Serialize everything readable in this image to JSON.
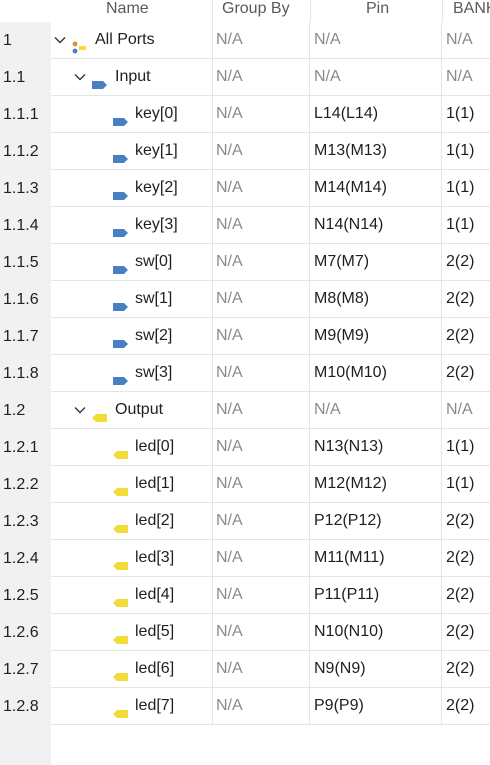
{
  "columns": {
    "name": "Name",
    "group_by": "Group By",
    "pin": "Pin",
    "bank": "BANK"
  },
  "colors": {
    "input_port": "#4a7fc1",
    "output_port": "#f2dc3a",
    "all_ports": "#e08a2a"
  },
  "rows": [
    {
      "num": "1",
      "level": 0,
      "expandable": true,
      "icon": "all-ports-icon",
      "name": "All Ports",
      "group_by": "N/A",
      "pin": "N/A",
      "bank": "N/A"
    },
    {
      "num": "1.1",
      "level": 1,
      "expandable": true,
      "icon": "input-port-icon",
      "name": "Input",
      "group_by": "N/A",
      "pin": "N/A",
      "bank": "N/A"
    },
    {
      "num": "1.1.1",
      "level": 2,
      "expandable": false,
      "icon": "input-port-icon",
      "name": "key[0]",
      "group_by": "N/A",
      "pin": "L14(L14)",
      "bank": "1(1)"
    },
    {
      "num": "1.1.2",
      "level": 2,
      "expandable": false,
      "icon": "input-port-icon",
      "name": "key[1]",
      "group_by": "N/A",
      "pin": "M13(M13)",
      "bank": "1(1)"
    },
    {
      "num": "1.1.3",
      "level": 2,
      "expandable": false,
      "icon": "input-port-icon",
      "name": "key[2]",
      "group_by": "N/A",
      "pin": "M14(M14)",
      "bank": "1(1)"
    },
    {
      "num": "1.1.4",
      "level": 2,
      "expandable": false,
      "icon": "input-port-icon",
      "name": "key[3]",
      "group_by": "N/A",
      "pin": "N14(N14)",
      "bank": "1(1)"
    },
    {
      "num": "1.1.5",
      "level": 2,
      "expandable": false,
      "icon": "input-port-icon",
      "name": "sw[0]",
      "group_by": "N/A",
      "pin": "M7(M7)",
      "bank": "2(2)"
    },
    {
      "num": "1.1.6",
      "level": 2,
      "expandable": false,
      "icon": "input-port-icon",
      "name": "sw[1]",
      "group_by": "N/A",
      "pin": "M8(M8)",
      "bank": "2(2)"
    },
    {
      "num": "1.1.7",
      "level": 2,
      "expandable": false,
      "icon": "input-port-icon",
      "name": "sw[2]",
      "group_by": "N/A",
      "pin": "M9(M9)",
      "bank": "2(2)"
    },
    {
      "num": "1.1.8",
      "level": 2,
      "expandable": false,
      "icon": "input-port-icon",
      "name": "sw[3]",
      "group_by": "N/A",
      "pin": "M10(M10)",
      "bank": "2(2)"
    },
    {
      "num": "1.2",
      "level": 1,
      "expandable": true,
      "icon": "output-port-icon",
      "name": "Output",
      "group_by": "N/A",
      "pin": "N/A",
      "bank": "N/A"
    },
    {
      "num": "1.2.1",
      "level": 2,
      "expandable": false,
      "icon": "output-port-icon",
      "name": "led[0]",
      "group_by": "N/A",
      "pin": "N13(N13)",
      "bank": "1(1)"
    },
    {
      "num": "1.2.2",
      "level": 2,
      "expandable": false,
      "icon": "output-port-icon",
      "name": "led[1]",
      "group_by": "N/A",
      "pin": "M12(M12)",
      "bank": "1(1)"
    },
    {
      "num": "1.2.3",
      "level": 2,
      "expandable": false,
      "icon": "output-port-icon",
      "name": "led[2]",
      "group_by": "N/A",
      "pin": "P12(P12)",
      "bank": "2(2)"
    },
    {
      "num": "1.2.4",
      "level": 2,
      "expandable": false,
      "icon": "output-port-icon",
      "name": "led[3]",
      "group_by": "N/A",
      "pin": "M11(M11)",
      "bank": "2(2)"
    },
    {
      "num": "1.2.5",
      "level": 2,
      "expandable": false,
      "icon": "output-port-icon",
      "name": "led[4]",
      "group_by": "N/A",
      "pin": "P11(P11)",
      "bank": "2(2)"
    },
    {
      "num": "1.2.6",
      "level": 2,
      "expandable": false,
      "icon": "output-port-icon",
      "name": "led[5]",
      "group_by": "N/A",
      "pin": "N10(N10)",
      "bank": "2(2)"
    },
    {
      "num": "1.2.7",
      "level": 2,
      "expandable": false,
      "icon": "output-port-icon",
      "name": "led[6]",
      "group_by": "N/A",
      "pin": "N9(N9)",
      "bank": "2(2)"
    },
    {
      "num": "1.2.8",
      "level": 2,
      "expandable": false,
      "icon": "output-port-icon",
      "name": "led[7]",
      "group_by": "N/A",
      "pin": "P9(P9)",
      "bank": "2(2)"
    }
  ]
}
